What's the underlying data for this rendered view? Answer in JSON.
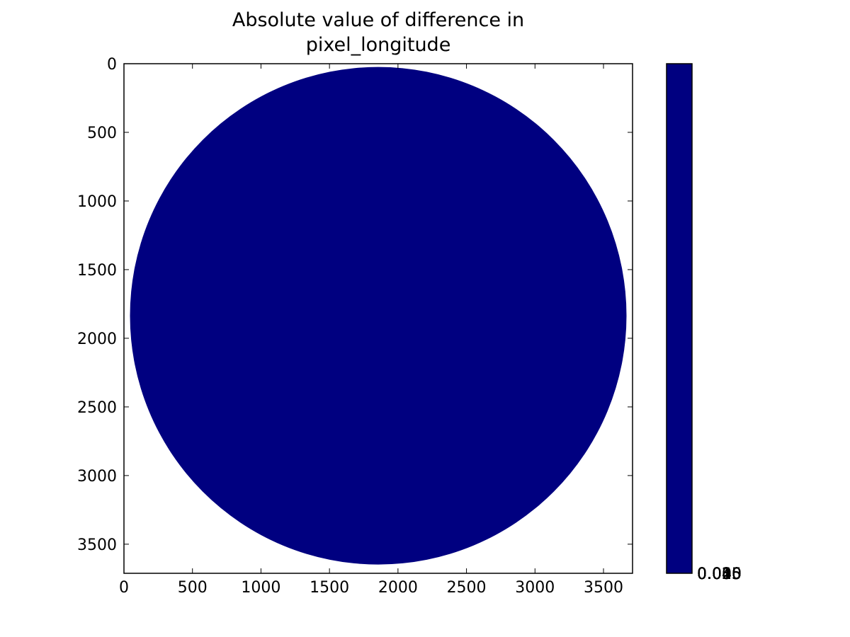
{
  "chart_data": {
    "type": "heatmap",
    "title_lines": [
      "Absolute value of difference in",
      "pixel_longitude"
    ],
    "xlabel": "",
    "ylabel": "",
    "xlim": [
      0,
      3712
    ],
    "ylim": [
      3712,
      0
    ],
    "x_ticks": [
      0,
      500,
      1000,
      1500,
      2000,
      2500,
      3000,
      3500
    ],
    "y_ticks": [
      0,
      500,
      1000,
      1500,
      2000,
      2500,
      3000,
      3500
    ],
    "image": {
      "shape": "disk",
      "center": [
        1856,
        1836
      ],
      "radius": 1812,
      "value": 0,
      "background": "masked"
    },
    "colorbar": {
      "colormap": "jet",
      "tick_labels": [
        "0.000",
        "0.005",
        "0.010",
        "0.015",
        "0.020",
        "0.025",
        "0.030",
        "0.035",
        "0.040",
        "0.045"
      ],
      "overlapping_labels": true
    },
    "grid": false,
    "colors": {
      "disk_fill": "#000080",
      "colorbar_fill": "#000080",
      "axes": "#000000"
    }
  }
}
